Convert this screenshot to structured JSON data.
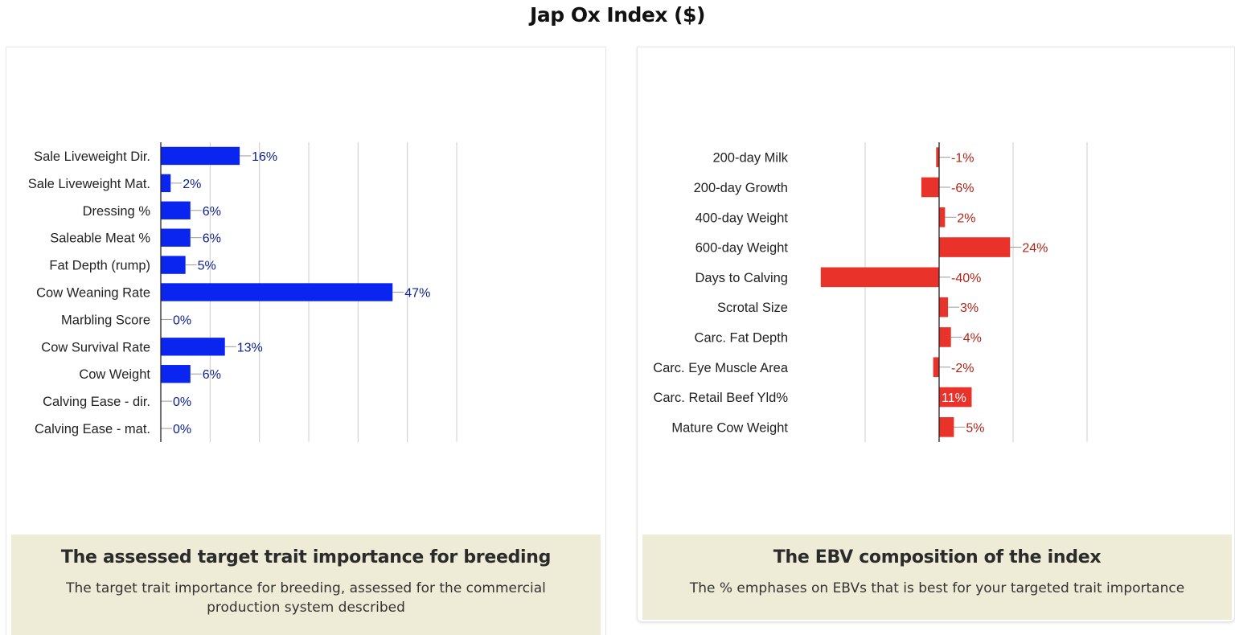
{
  "title": "Jap Ox Index ($)",
  "colors": {
    "blue_bar": "#0a25f0",
    "blue_text": "#0b1f8a",
    "red_bar": "#e8322a",
    "red_text": "#b02418",
    "caption_bg": "#eeecd6",
    "grid": "#cccccc"
  },
  "left_panel": {
    "caption_title": "The assessed target trait importance for breeding",
    "caption_text": "The target trait importance for breeding, assessed for the commercial production system described"
  },
  "right_panel": {
    "caption_title": "The EBV composition of the index",
    "caption_text": "The % emphases on EBVs that is best for your targeted trait importance"
  },
  "chart_data": [
    {
      "type": "bar",
      "orientation": "horizontal",
      "title": "",
      "categories": [
        "Sale Liveweight Dir.",
        "Sale Liveweight Mat.",
        "Dressing %",
        "Saleable Meat %",
        "Fat Depth (rump)",
        "Cow Weaning Rate",
        "Marbling Score",
        "Cow Survival Rate",
        "Cow Weight",
        "Calving Ease - dir.",
        "Calving Ease - mat."
      ],
      "values": [
        16,
        2,
        6,
        6,
        5,
        47,
        0,
        13,
        6,
        0,
        0
      ],
      "labels": [
        "16%",
        "2%",
        "6%",
        "6%",
        "5%",
        "47%",
        "0%",
        "13%",
        "6%",
        "0%",
        "0%"
      ],
      "xlim": [
        0,
        60
      ],
      "grid": true,
      "color": "#0a25f0"
    },
    {
      "type": "bar",
      "orientation": "horizontal",
      "title": "",
      "categories": [
        "200-day Milk",
        "200-day Growth",
        "400-day Weight",
        "600-day Weight",
        "Days to Calving",
        "Scrotal Size",
        "Carc. Fat Depth",
        "Carc. Eye Muscle Area",
        "Carc. Retail Beef Yld%",
        "Mature Cow Weight"
      ],
      "values": [
        -1,
        -6,
        2,
        24,
        -40,
        3,
        4,
        -2,
        11,
        5
      ],
      "labels": [
        "-1%",
        "-6%",
        "2%",
        "24%",
        "-40%",
        "3%",
        "4%",
        "-2%",
        "11%",
        "5%"
      ],
      "xlim": [
        -50,
        50
      ],
      "grid": true,
      "color": "#e8322a"
    }
  ]
}
